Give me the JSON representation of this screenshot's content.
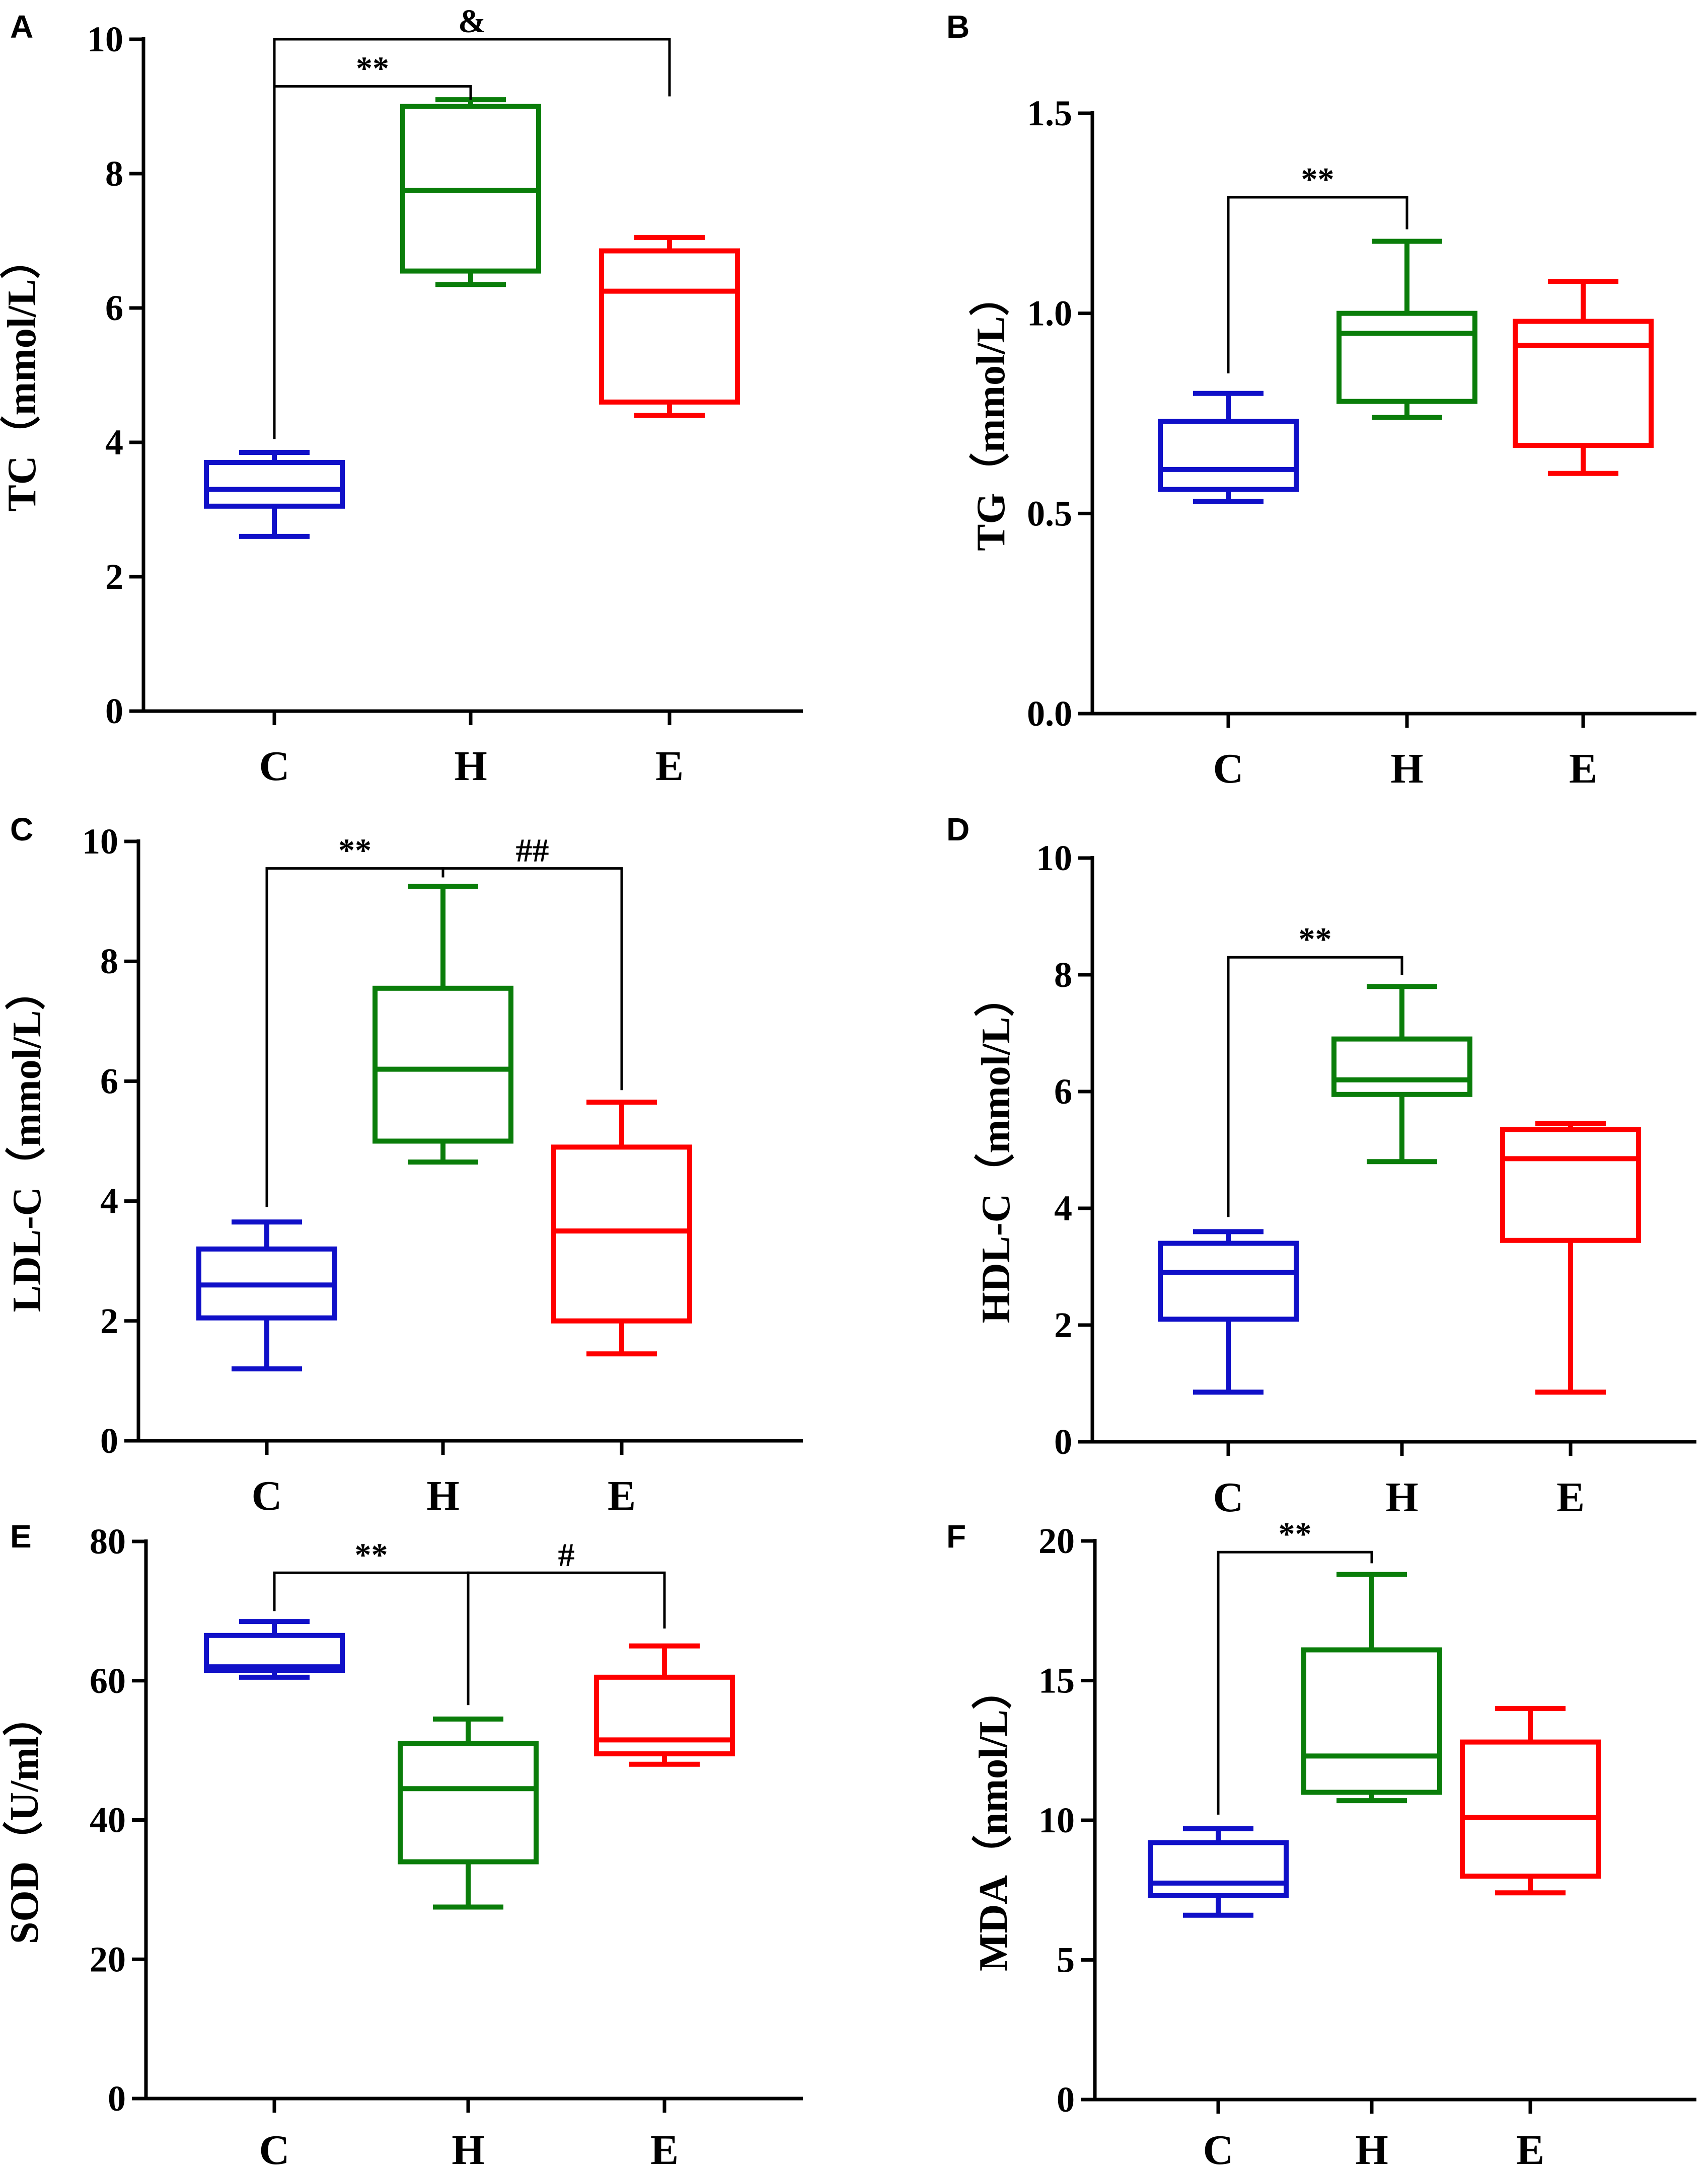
{
  "colors": {
    "C": "#1010c8",
    "H": "#0a7d0a",
    "E": "#ff0000",
    "axis": "#000000"
  },
  "chart_data": [
    {
      "panel": "A",
      "type": "box",
      "ylabel": "TC（mmol/L）",
      "ylim": [
        0,
        10
      ],
      "yticks": [
        0,
        2,
        4,
        6,
        8,
        10
      ],
      "ytick_labels": [
        "0",
        "2",
        "4",
        "6",
        "8",
        "10"
      ],
      "categories": [
        "C",
        "H",
        "E"
      ],
      "boxes": [
        {
          "group": "C",
          "min": 2.6,
          "q1": 3.05,
          "median": 3.3,
          "q3": 3.7,
          "max": 3.85
        },
        {
          "group": "H",
          "min": 6.35,
          "q1": 6.55,
          "median": 7.75,
          "q3": 9.0,
          "max": 9.1
        },
        {
          "group": "E",
          "min": 4.4,
          "q1": 4.6,
          "median": 6.25,
          "q3": 6.85,
          "max": 7.05
        }
      ],
      "brackets": [
        {
          "label": "**",
          "from": "C",
          "to": "H",
          "y": 9.3,
          "from_end": 4.05,
          "to_end": 9.1
        },
        {
          "label": "&",
          "from": "C",
          "to": "E",
          "y": 10.0,
          "from_end": 9.3,
          "to_end": 9.15
        }
      ]
    },
    {
      "panel": "B",
      "type": "box",
      "ylabel": "TG（mmol/L）",
      "ylim": [
        0,
        1.5
      ],
      "yticks": [
        0,
        0.5,
        1.0,
        1.5
      ],
      "ytick_labels": [
        "0.0",
        "0.5",
        "1.0",
        "1.5"
      ],
      "categories": [
        "C",
        "H",
        "E"
      ],
      "boxes": [
        {
          "group": "C",
          "min": 0.53,
          "q1": 0.56,
          "median": 0.61,
          "q3": 0.73,
          "max": 0.8
        },
        {
          "group": "H",
          "min": 0.74,
          "q1": 0.78,
          "median": 0.95,
          "q3": 1.0,
          "max": 1.18
        },
        {
          "group": "E",
          "min": 0.6,
          "q1": 0.67,
          "median": 0.92,
          "q3": 0.98,
          "max": 1.08
        }
      ],
      "brackets": [
        {
          "label": "**",
          "from": "C",
          "to": "H",
          "y": 1.29,
          "from_end": 0.85,
          "to_end": 1.21
        }
      ]
    },
    {
      "panel": "C",
      "type": "box",
      "ylabel": "LDL-C（mmol/L）",
      "ylim": [
        0,
        10
      ],
      "yticks": [
        0,
        2,
        4,
        6,
        8,
        10
      ],
      "ytick_labels": [
        "0",
        "2",
        "4",
        "6",
        "8",
        "10"
      ],
      "categories": [
        "C",
        "H",
        "E"
      ],
      "boxes": [
        {
          "group": "C",
          "min": 1.2,
          "q1": 2.05,
          "median": 2.6,
          "q3": 3.2,
          "max": 3.65
        },
        {
          "group": "H",
          "min": 4.65,
          "q1": 5.0,
          "median": 6.2,
          "q3": 7.55,
          "max": 9.25
        },
        {
          "group": "E",
          "min": 1.45,
          "q1": 2.0,
          "median": 3.5,
          "q3": 4.9,
          "max": 5.65
        }
      ],
      "brackets": [
        {
          "label": "**",
          "from": "C",
          "to": "H",
          "y": 9.55,
          "from_end": 3.9,
          "to_end": 9.4
        },
        {
          "label": "##",
          "from": "H",
          "to": "E",
          "y": 9.55,
          "from_end": 9.4,
          "to_end": 5.85
        }
      ]
    },
    {
      "panel": "D",
      "type": "box",
      "ylabel": "HDL-C（mmol/L）",
      "ylim": [
        0,
        10
      ],
      "yticks": [
        0,
        2,
        4,
        6,
        8,
        10
      ],
      "ytick_labels": [
        "0",
        "2",
        "4",
        "6",
        "8",
        "10"
      ],
      "categories": [
        "C",
        "H",
        "E"
      ],
      "boxes": [
        {
          "group": "C",
          "min": 0.85,
          "q1": 2.1,
          "median": 2.9,
          "q3": 3.4,
          "max": 3.6
        },
        {
          "group": "H",
          "min": 4.8,
          "q1": 5.95,
          "median": 6.2,
          "q3": 6.9,
          "max": 7.8
        },
        {
          "group": "E",
          "min": 0.85,
          "q1": 3.45,
          "median": 4.85,
          "q3": 5.35,
          "max": 5.45
        }
      ],
      "brackets": [
        {
          "label": "**",
          "from": "C",
          "to": "H",
          "y": 8.3,
          "from_end": 3.85,
          "to_end": 8.0
        }
      ]
    },
    {
      "panel": "E",
      "type": "box",
      "ylabel": "SOD（U/ml）",
      "ylim": [
        0,
        80
      ],
      "yticks": [
        0,
        20,
        40,
        60,
        80
      ],
      "ytick_labels": [
        "0",
        "20",
        "40",
        "60",
        "80"
      ],
      "categories": [
        "C",
        "H",
        "E"
      ],
      "boxes": [
        {
          "group": "C",
          "min": 60.5,
          "q1": 61.5,
          "median": 62.0,
          "q3": 66.5,
          "max": 68.5
        },
        {
          "group": "H",
          "min": 27.5,
          "q1": 34.0,
          "median": 44.5,
          "q3": 51.0,
          "max": 54.5
        },
        {
          "group": "E",
          "min": 48.0,
          "q1": 49.5,
          "median": 51.5,
          "q3": 60.5,
          "max": 65.0
        }
      ],
      "brackets": [
        {
          "label": "**",
          "from": "C",
          "to": "H",
          "y": 75.5,
          "from_end": 70.0,
          "to_end": 56.5
        },
        {
          "label": "#",
          "from": "H",
          "to": "E",
          "y": 75.5,
          "from_end": 56.5,
          "to_end": 67.5
        }
      ]
    },
    {
      "panel": "F",
      "type": "box",
      "ylabel": "MDA（nmol/L）",
      "ylim": [
        0,
        20
      ],
      "yticks": [
        0,
        5,
        10,
        15,
        20
      ],
      "ytick_labels": [
        "0",
        "5",
        "10",
        "15",
        "20"
      ],
      "categories": [
        "C",
        "H",
        "E"
      ],
      "boxes": [
        {
          "group": "C",
          "min": 6.6,
          "q1": 7.3,
          "median": 7.75,
          "q3": 9.2,
          "max": 9.7
        },
        {
          "group": "H",
          "min": 10.7,
          "q1": 11.0,
          "median": 12.3,
          "q3": 16.1,
          "max": 18.8
        },
        {
          "group": "E",
          "min": 7.4,
          "q1": 8.0,
          "median": 10.1,
          "q3": 12.8,
          "max": 14.0
        }
      ],
      "brackets": [
        {
          "label": "**",
          "from": "C",
          "to": "H",
          "y": 19.6,
          "from_end": 10.2,
          "to_end": 19.2
        }
      ]
    }
  ]
}
